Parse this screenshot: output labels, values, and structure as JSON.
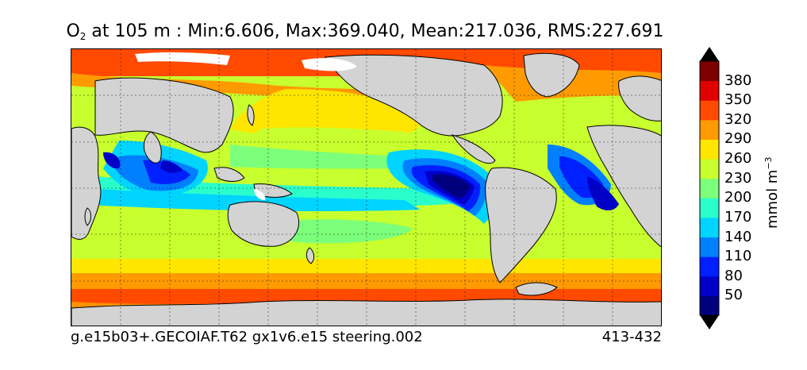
{
  "title": {
    "species": "O",
    "species_sub": "2",
    "rest": " at 105 m : Min:6.606, Max:369.040, Mean:217.036, RMS:227.691"
  },
  "footer": {
    "case_name": "g.e15b03+.GECOIAF.T62 gx1v6.e15 steering.002",
    "years": "413-432"
  },
  "colorbar": {
    "units_base": "mmol m",
    "units_exp": "−3",
    "levels": [
      "50",
      "80",
      "110",
      "140",
      "170",
      "200",
      "230",
      "260",
      "290",
      "320",
      "350",
      "380"
    ],
    "colors": [
      "#00007f",
      "#0000c8",
      "#0020ff",
      "#0080ff",
      "#00d4ff",
      "#2affcc",
      "#7cff7a",
      "#c8ff2e",
      "#ffe600",
      "#ff9a00",
      "#ff4a00",
      "#e00000",
      "#7f0000"
    ],
    "extend": "both"
  },
  "map": {
    "land_color": "#d3d3d3",
    "gridlines": "dotted",
    "projection": "cylindrical, 30E-390E"
  }
}
